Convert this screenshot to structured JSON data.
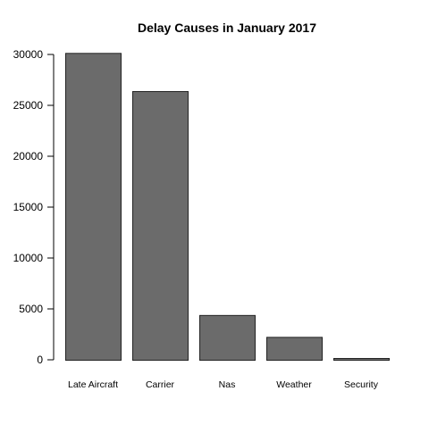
{
  "chart_data": {
    "type": "bar",
    "title": "Delay Causes in January 2017",
    "xlabel": "",
    "ylabel": "",
    "categories": [
      "Late Aircraft",
      "Carrier",
      "Nas",
      "Weather",
      "Security"
    ],
    "values": [
      30150,
      26400,
      4400,
      2250,
      150
    ],
    "ylim": [
      0,
      30000
    ],
    "yticks": [
      "0",
      "5000",
      "10000",
      "15000",
      "20000",
      "25000",
      "30000"
    ],
    "grid": false,
    "bar_color": "#6b6b6b",
    "bar_edge_color": "#222222"
  }
}
